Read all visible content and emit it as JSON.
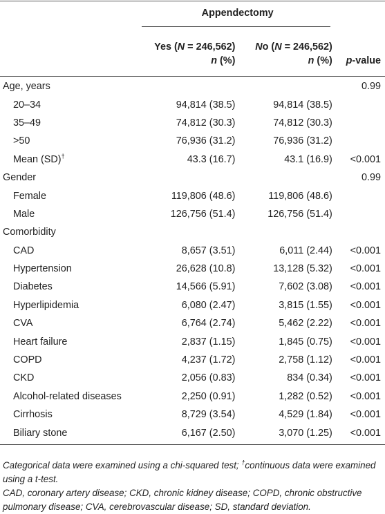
{
  "header": {
    "group_label": "Appendectomy",
    "yes_label": "Yes (N = 246,562)",
    "no_label": "No (N = 246,562)",
    "n_pct_label": "n (%)",
    "pvalue_label": "p-value"
  },
  "rows": [
    {
      "label": "Age, years",
      "yes": "",
      "no": "",
      "p": "0.99",
      "indent": false
    },
    {
      "label": "20–34",
      "yes": "94,814 (38.5)",
      "no": "94,814 (38.5)",
      "p": "",
      "indent": true
    },
    {
      "label": "35–49",
      "yes": "74,812 (30.3)",
      "no": "74,812 (30.3)",
      "p": "",
      "indent": true
    },
    {
      "label": ">50",
      "yes": "76,936 (31.2)",
      "no": "76,936 (31.2)",
      "p": "",
      "indent": true
    },
    {
      "label": "Mean (SD)",
      "label_sup": "†",
      "yes": "43.3 (16.7)",
      "no": "43.1 (16.9)",
      "p": "<0.001",
      "indent": true
    },
    {
      "label": "Gender",
      "yes": "",
      "no": "",
      "p": "0.99",
      "indent": false
    },
    {
      "label": "Female",
      "yes": "119,806 (48.6)",
      "no": "119,806 (48.6)",
      "p": "",
      "indent": true
    },
    {
      "label": "Male",
      "yes": "126,756 (51.4)",
      "no": "126,756 (51.4)",
      "p": "",
      "indent": true
    },
    {
      "label": "Comorbidity",
      "yes": "",
      "no": "",
      "p": "",
      "indent": false
    },
    {
      "label": "CAD",
      "yes": "8,657 (3.51)",
      "no": "6,011 (2.44)",
      "p": "<0.001",
      "indent": true
    },
    {
      "label": "Hypertension",
      "yes": "26,628 (10.8)",
      "no": "13,128 (5.32)",
      "p": "<0.001",
      "indent": true
    },
    {
      "label": "Diabetes",
      "yes": "14,566 (5.91)",
      "no": "7,602 (3.08)",
      "p": "<0.001",
      "indent": true
    },
    {
      "label": "Hyperlipidemia",
      "yes": "6,080 (2.47)",
      "no": "3,815 (1.55)",
      "p": "<0.001",
      "indent": true
    },
    {
      "label": "CVA",
      "yes": "6,764 (2.74)",
      "no": "5,462 (2.22)",
      "p": "<0.001",
      "indent": true
    },
    {
      "label": "Heart failure",
      "yes": "2,837 (1.15)",
      "no": "1,845 (0.75)",
      "p": "<0.001",
      "indent": true
    },
    {
      "label": "COPD",
      "yes": "4,237 (1.72)",
      "no": "2,758 (1.12)",
      "p": "<0.001",
      "indent": true
    },
    {
      "label": "CKD",
      "yes": "2,056 (0.83)",
      "no": "834 (0.34)",
      "p": "<0.001",
      "indent": true
    },
    {
      "label": "Alcohol-related diseases",
      "yes": "2,250 (0.91)",
      "no": "1,282 (0.52)",
      "p": "<0.001",
      "indent": true
    },
    {
      "label": "Cirrhosis",
      "yes": "8,729 (3.54)",
      "no": "4,529 (1.84)",
      "p": "<0.001",
      "indent": true
    },
    {
      "label": "Biliary stone",
      "yes": "6,167 (2.50)",
      "no": "3,070 (1.25)",
      "p": "<0.001",
      "indent": true
    }
  ],
  "footnotes": {
    "note1_a": "Categorical data were examined using a chi-squared test; ",
    "note1_sup": "†",
    "note1_b": "continuous data were examined using a t-test.",
    "note2": "CAD, coronary artery disease; CKD, chronic kidney disease; COPD, chronic obstructive pulmonary disease; CVA, cerebrovascular disease; SD, standard deviation."
  }
}
